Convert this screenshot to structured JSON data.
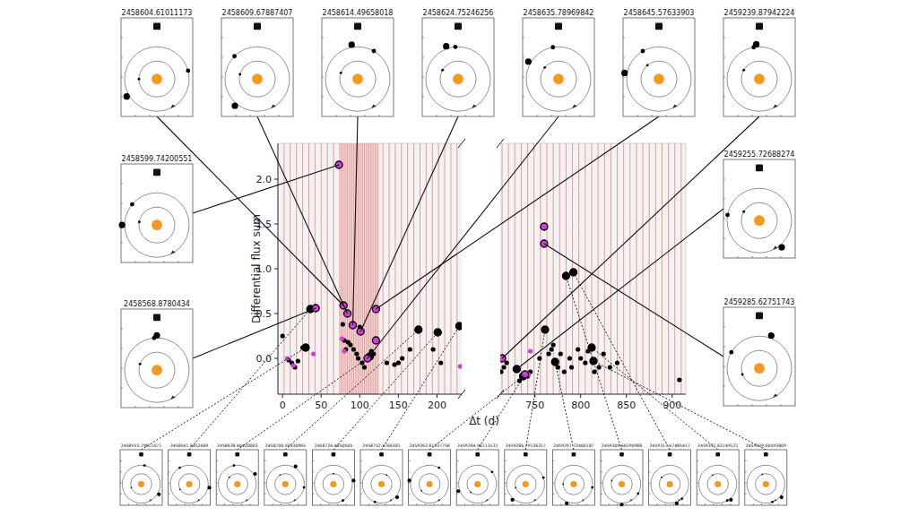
{
  "chart_data": {
    "type": "scatter",
    "x_label": "Δt (d)",
    "y_label": "Differential flux sum",
    "panels": [
      {
        "xlim": [
          -6,
          232
        ],
        "xticks": [
          0,
          50,
          100,
          150,
          200
        ]
      },
      {
        "xlim": [
          712,
          915
        ],
        "xticks": [
          750,
          800,
          850,
          900
        ]
      }
    ],
    "ylim": [
      -0.4,
      2.4
    ],
    "yticks": [
      {
        "value": 0,
        "label": "0.0"
      },
      {
        "value": 0.5,
        "label": "0.5"
      },
      {
        "value": 1,
        "label": "1.0"
      },
      {
        "value": 1.5,
        "label": "1.5"
      },
      {
        "value": 2,
        "label": "2.0"
      }
    ],
    "vertical_lines": {
      "color": "#e06060",
      "x": [
        2,
        10,
        18,
        26,
        34,
        42,
        50,
        58,
        66,
        74,
        76,
        78,
        80,
        82,
        84,
        86,
        88,
        90,
        92,
        94,
        96,
        98,
        100,
        102,
        104,
        106,
        108,
        110,
        112,
        114,
        116,
        118,
        120,
        122,
        124,
        130,
        138,
        146,
        154,
        162,
        170,
        178,
        186,
        194,
        202,
        210,
        218,
        226,
        714,
        721,
        728,
        735,
        742,
        749,
        756,
        763,
        770,
        777,
        784,
        791,
        798,
        805,
        812,
        819,
        826,
        833,
        840,
        847,
        854,
        861,
        868,
        875,
        882,
        889,
        896,
        903,
        910
      ]
    },
    "series": [
      {
        "color": "#000000",
        "marker": "dot",
        "x": [
          0,
          8,
          12,
          16,
          20,
          26,
          78,
          80,
          82,
          85,
          88,
          92,
          96,
          98,
          100,
          103,
          106,
          115,
          118,
          135,
          145,
          150,
          155,
          165,
          195,
          205,
          713,
          716,
          719,
          733,
          742,
          745,
          755,
          765,
          768,
          770,
          775,
          778,
          782,
          788,
          790,
          797,
          800,
          805,
          808,
          815,
          820,
          825,
          832,
          840,
          908
        ],
        "values": [
          0.25,
          -0.02,
          -0.05,
          -0.1,
          -0.03,
          0.12,
          0.38,
          0.2,
          0.1,
          0.18,
          0.15,
          0.1,
          0.05,
          0.0,
          0.35,
          -0.05,
          -0.1,
          0.08,
          0.05,
          -0.05,
          -0.07,
          -0.05,
          0.0,
          0.1,
          0.1,
          -0.05,
          -0.15,
          -0.1,
          -0.05,
          -0.25,
          -0.2,
          -0.15,
          0.0,
          0.05,
          0.1,
          0.15,
          -0.1,
          0.05,
          -0.15,
          0.0,
          -0.1,
          0.1,
          0.0,
          -0.05,
          0.08,
          -0.15,
          -0.1,
          0.05,
          -0.1,
          -0.05,
          -0.24
        ]
      },
      {
        "color": "#000000",
        "marker": "ringed",
        "x": [
          30,
          36,
          113,
          176,
          201,
          229,
          730,
          737,
          761,
          772,
          784,
          792,
          812,
          814
        ],
        "values": [
          0.12,
          0.55,
          0.02,
          0.32,
          0.29,
          0.36,
          -0.12,
          -0.2,
          0.32,
          -0.04,
          0.92,
          0.96,
          0.12,
          -0.03
        ]
      },
      {
        "color": "#d63ad6",
        "marker": "dot",
        "x": [
          6,
          14,
          40,
          77,
          80,
          230,
          745,
          743
        ],
        "values": [
          0.0,
          -0.08,
          0.05,
          0.22,
          0.08,
          -0.09,
          0.08,
          -0.18
        ]
      },
      {
        "color": "#d63ad6",
        "marker": "ringed",
        "x": [
          43,
          73,
          79,
          84,
          91,
          101,
          110,
          121,
          121,
          714,
          739,
          760,
          760
        ],
        "values": [
          0.56,
          2.16,
          0.59,
          0.5,
          0.37,
          0.3,
          0.0,
          0.55,
          0.2,
          0.0,
          -0.18,
          1.47,
          1.28
        ]
      }
    ],
    "annotations": [
      {
        "label": "2458604.61011173",
        "x": 79,
        "y": 0.59,
        "planets": [
          180,
          15,
          210
        ]
      },
      {
        "label": "2458609.67887407",
        "x": 84,
        "y": 0.5,
        "planets": [
          165,
          135,
          230
        ]
      },
      {
        "label": "2458614.49658018",
        "x": 91,
        "y": 0.37,
        "planets": [
          160,
          60,
          100
        ]
      },
      {
        "label": "2458624.75246256",
        "x": 101,
        "y": 0.3,
        "planets": [
          150,
          95,
          110
        ]
      },
      {
        "label": "2458635.78969842",
        "x": 110,
        "y": 0.0,
        "planets": [
          140,
          100,
          150
        ]
      },
      {
        "label": "2458645.57633903",
        "x": 121,
        "y": 0.55,
        "planets": [
          130,
          120,
          170
        ]
      },
      {
        "label": "2459239.87942224",
        "x": 714,
        "y": 0.0,
        "planets": [
          150,
          100,
          95
        ]
      },
      {
        "label": "2458599.74200551",
        "x": 73,
        "y": 2.16,
        "planets": [
          170,
          140,
          180
        ]
      },
      {
        "label": "2458568.8780434",
        "x": 43,
        "y": 0.56,
        "planets": [
          160,
          95,
          90
        ]
      },
      {
        "label": "2459255.72688274",
        "x": 730,
        "y": -0.12,
        "planets": [
          150,
          170,
          310
        ]
      },
      {
        "label": "2459285.62751743",
        "x": 760,
        "y": 1.28,
        "planets": [
          200,
          150,
          70
        ]
      },
      {
        "label": "2458555.79611671",
        "x": 30,
        "y": 0.12,
        "planets": [
          200,
          80,
          330
        ]
      },
      {
        "label": "2458561.8452669",
        "x": 36,
        "y": 0.55,
        "planets": [
          210,
          120,
          350
        ]
      },
      {
        "label": "2458638.60420003",
        "x": 113,
        "y": 0.02,
        "planets": [
          140,
          100,
          30
        ]
      },
      {
        "label": "2458700.56530965",
        "x": 176,
        "y": 0.32,
        "planets": [
          120,
          350,
          60
        ]
      },
      {
        "label": "2458726.4850505",
        "x": 201,
        "y": 0.29,
        "planets": [
          90,
          300,
          10
        ]
      },
      {
        "label": "2458752.4766181",
        "x": 229,
        "y": 0.36,
        "planets": [
          60,
          250,
          320
        ]
      },
      {
        "label": "2459262.81537758",
        "x": 737,
        "y": -0.2,
        "planets": [
          220,
          60,
          170
        ]
      },
      {
        "label": "2459264.96113131",
        "x": 739,
        "y": -0.18,
        "planets": [
          230,
          40,
          200
        ]
      },
      {
        "label": "2459286.79136317",
        "x": 761,
        "y": 0.32,
        "planets": [
          200,
          20,
          230
        ]
      },
      {
        "label": "2459297.72460187",
        "x": 772,
        "y": -0.04,
        "planets": [
          180,
          350,
          250
        ]
      },
      {
        "label": "2459309.66190988",
        "x": 784,
        "y": 0.92,
        "planets": [
          160,
          330,
          270
        ]
      },
      {
        "label": "2459317.67485417",
        "x": 792,
        "y": 0.96,
        "planets": [
          140,
          310,
          290
        ]
      },
      {
        "label": "2459337.63149121",
        "x": 812,
        "y": 0.12,
        "planets": [
          120,
          300,
          310
        ]
      },
      {
        "label": "2459339.60593809",
        "x": 814,
        "y": -0.03,
        "planets": [
          110,
          290,
          320
        ]
      }
    ]
  }
}
